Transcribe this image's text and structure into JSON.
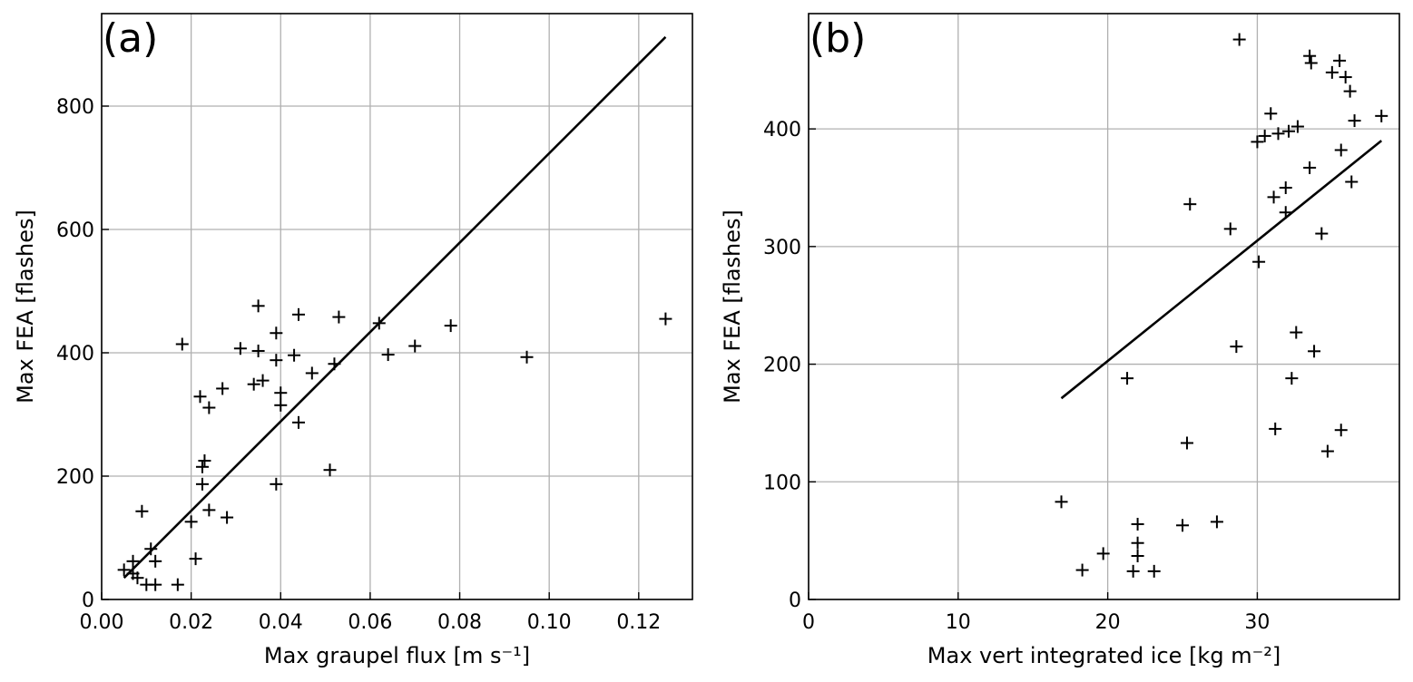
{
  "chart_data": [
    {
      "type": "scatter",
      "panel_label": "(a)",
      "xlabel": "Max graupel flux [m s⁻¹]",
      "ylabel": "Max FEA [flashes]",
      "xlim": [
        0.0,
        0.132
      ],
      "ylim": [
        0,
        950
      ],
      "xticks": [
        0.0,
        0.02,
        0.04,
        0.06,
        0.08,
        0.1,
        0.12
      ],
      "xtick_labels": [
        "0.00",
        "0.02",
        "0.04",
        "0.06",
        "0.08",
        "0.10",
        "0.12"
      ],
      "yticks": [
        0,
        200,
        400,
        600,
        800
      ],
      "ytick_labels": [
        "0",
        "200",
        "400",
        "600",
        "800"
      ],
      "grid": true,
      "marker": "+",
      "points": [
        [
          0.005,
          48
        ],
        [
          0.007,
          62
        ],
        [
          0.007,
          42
        ],
        [
          0.008,
          35
        ],
        [
          0.009,
          143
        ],
        [
          0.01,
          24
        ],
        [
          0.011,
          82
        ],
        [
          0.012,
          24
        ],
        [
          0.012,
          62
        ],
        [
          0.017,
          24
        ],
        [
          0.018,
          414
        ],
        [
          0.02,
          126
        ],
        [
          0.021,
          66
        ],
        [
          0.022,
          329
        ],
        [
          0.0225,
          215
        ],
        [
          0.0225,
          187
        ],
        [
          0.023,
          225
        ],
        [
          0.024,
          145
        ],
        [
          0.024,
          311
        ],
        [
          0.027,
          342
        ],
        [
          0.028,
          133
        ],
        [
          0.031,
          407
        ],
        [
          0.034,
          349
        ],
        [
          0.035,
          476
        ],
        [
          0.035,
          403
        ],
        [
          0.036,
          355
        ],
        [
          0.039,
          388
        ],
        [
          0.039,
          432
        ],
        [
          0.039,
          187
        ],
        [
          0.04,
          335
        ],
        [
          0.04,
          315
        ],
        [
          0.043,
          396
        ],
        [
          0.044,
          462
        ],
        [
          0.044,
          287
        ],
        [
          0.047,
          367
        ],
        [
          0.051,
          210
        ],
        [
          0.052,
          382
        ],
        [
          0.053,
          458
        ],
        [
          0.062,
          448
        ],
        [
          0.064,
          397
        ],
        [
          0.07,
          411
        ],
        [
          0.078,
          444
        ],
        [
          0.095,
          393
        ],
        [
          0.126,
          455
        ]
      ],
      "fit_line": {
        "x": [
          0.005,
          0.126
        ],
        "y": [
          35,
          912
        ]
      }
    },
    {
      "type": "scatter",
      "panel_label": "(b)",
      "xlabel": "Max vert integrated ice [kg m⁻²]",
      "ylabel": "Max FEA [flashes]",
      "xlim": [
        0,
        39.5
      ],
      "ylim": [
        0,
        498
      ],
      "xticks": [
        0,
        10,
        20,
        30
      ],
      "xtick_labels": [
        "0",
        "10",
        "20",
        "30"
      ],
      "yticks": [
        0,
        100,
        200,
        300,
        400
      ],
      "ytick_labels": [
        "0",
        "100",
        "200",
        "300",
        "400"
      ],
      "grid": true,
      "marker": "+",
      "points": [
        [
          16.9,
          83
        ],
        [
          18.3,
          25
        ],
        [
          19.7,
          39
        ],
        [
          21.3,
          188
        ],
        [
          21.7,
          24
        ],
        [
          22.0,
          64
        ],
        [
          22.0,
          48
        ],
        [
          22.0,
          37
        ],
        [
          23.1,
          24
        ],
        [
          25.0,
          63
        ],
        [
          25.3,
          133
        ],
        [
          25.5,
          336
        ],
        [
          27.3,
          66
        ],
        [
          28.2,
          315
        ],
        [
          28.6,
          215
        ],
        [
          28.8,
          476
        ],
        [
          30.0,
          389
        ],
        [
          30.1,
          287
        ],
        [
          30.5,
          394
        ],
        [
          30.9,
          413
        ],
        [
          31.1,
          342
        ],
        [
          31.2,
          145
        ],
        [
          31.4,
          396
        ],
        [
          31.9,
          350
        ],
        [
          31.9,
          329
        ],
        [
          32.1,
          398
        ],
        [
          32.3,
          188
        ],
        [
          32.6,
          227
        ],
        [
          32.7,
          402
        ],
        [
          33.5,
          367
        ],
        [
          33.5,
          462
        ],
        [
          33.6,
          456
        ],
        [
          33.8,
          211
        ],
        [
          34.3,
          311
        ],
        [
          34.7,
          126
        ],
        [
          35.0,
          448
        ],
        [
          35.5,
          458
        ],
        [
          35.6,
          382
        ],
        [
          35.6,
          144
        ],
        [
          35.9,
          444
        ],
        [
          36.2,
          432
        ],
        [
          36.3,
          355
        ],
        [
          36.5,
          407
        ],
        [
          38.3,
          411
        ]
      ],
      "fit_line": {
        "x": [
          16.9,
          38.3
        ],
        "y": [
          171,
          390
        ]
      }
    }
  ]
}
